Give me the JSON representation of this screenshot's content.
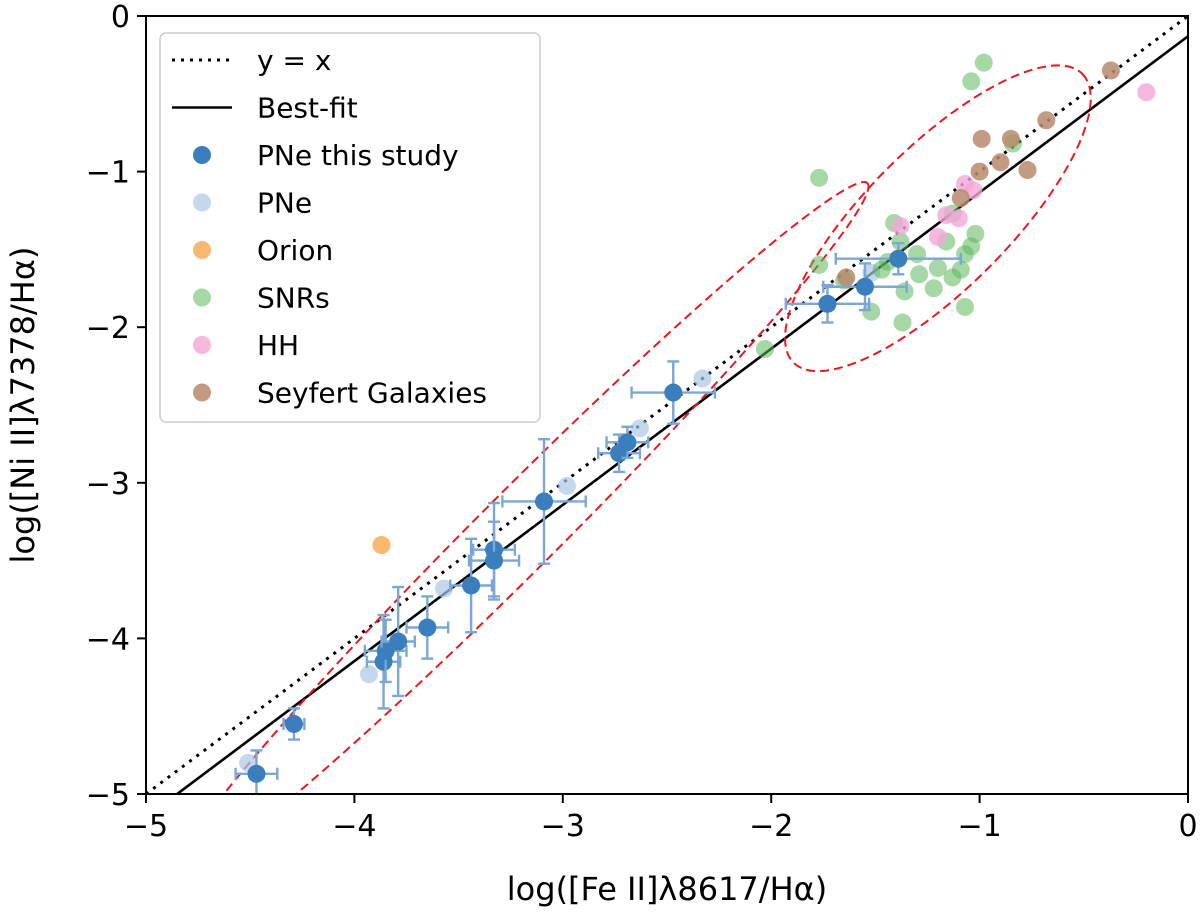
{
  "chart_data": {
    "type": "scatter",
    "title": "",
    "xlabel": "log([Fe II]λ8617/Hα)",
    "ylabel": "log([Ni II]λ7378/Hα)",
    "xlim": [
      -5,
      0
    ],
    "ylim": [
      -5,
      0
    ],
    "grid": false,
    "legend_position": "top-left",
    "x_ticks": [
      -5,
      -4,
      -3,
      -2,
      -1,
      0
    ],
    "y_ticks": [
      -5,
      -4,
      -3,
      -2,
      -1,
      0
    ],
    "x_tick_labels": [
      "−5",
      "−4",
      "−3",
      "−2",
      "−1",
      "0"
    ],
    "y_tick_labels": [
      "−5",
      "−4",
      "−3",
      "−2",
      "−1",
      "0"
    ],
    "lines": [
      {
        "name": "y = x",
        "style": "dotted",
        "color": "#000000",
        "x": [
          -5,
          0
        ],
        "y": [
          -5,
          0
        ]
      },
      {
        "name": "Best-fit",
        "style": "solid",
        "color": "#000000",
        "x": [
          -5,
          0
        ],
        "y": [
          -5.15,
          -0.13
        ]
      }
    ],
    "ellipses": [
      {
        "name": "pne-region",
        "color": "#e8191c",
        "cx": -3.2,
        "cy": -3.3,
        "semi_major": 2.35,
        "semi_minor": 0.19,
        "angle_deg": 45
      },
      {
        "name": "shock-region",
        "color": "#e8191c",
        "cx": -1.2,
        "cy": -1.3,
        "semi_major": 0.98,
        "semi_minor": 0.34,
        "angle_deg": 45
      }
    ],
    "series": [
      {
        "name": "PNe this study",
        "color": "#3a7ebd",
        "alpha": 1.0,
        "error_bars": true,
        "points": [
          {
            "x": -4.47,
            "y": -4.87,
            "xerr": 0.1,
            "yerr": 0.15
          },
          {
            "x": -4.29,
            "y": -4.55,
            "xerr": 0.05,
            "yerr": 0.1
          },
          {
            "x": -3.86,
            "y": -4.15,
            "xerr": 0.08,
            "yerr": 0.3
          },
          {
            "x": -3.85,
            "y": -4.08,
            "xerr": 0.1,
            "yerr": 0.2
          },
          {
            "x": -3.79,
            "y": -4.02,
            "xerr": 0.08,
            "yerr": 0.35
          },
          {
            "x": -3.65,
            "y": -3.93,
            "xerr": 0.1,
            "yerr": 0.2
          },
          {
            "x": -3.44,
            "y": -3.66,
            "xerr": 0.1,
            "yerr": 0.3
          },
          {
            "x": -3.33,
            "y": -3.43,
            "xerr": 0.1,
            "yerr": 0.3
          },
          {
            "x": -3.33,
            "y": -3.5,
            "xerr": 0.12,
            "yerr": 0.25
          },
          {
            "x": -3.09,
            "y": -3.12,
            "xerr": 0.2,
            "yerr": 0.4
          },
          {
            "x": -2.73,
            "y": -2.81,
            "xerr": 0.1,
            "yerr": 0.12
          },
          {
            "x": -2.69,
            "y": -2.74,
            "xerr": 0.1,
            "yerr": 0.1
          },
          {
            "x": -2.47,
            "y": -2.42,
            "xerr": 0.2,
            "yerr": 0.2
          },
          {
            "x": -1.73,
            "y": -1.85,
            "xerr": 0.2,
            "yerr": 0.12
          },
          {
            "x": -1.55,
            "y": -1.74,
            "xerr": 0.2,
            "yerr": 0.15
          },
          {
            "x": -1.39,
            "y": -1.56,
            "xerr": 0.3,
            "yerr": 0.1
          }
        ]
      },
      {
        "name": "PNe",
        "color": "#a9c8e6",
        "alpha": 0.7,
        "error_bars": false,
        "points": [
          {
            "x": -4.51,
            "y": -4.8
          },
          {
            "x": -3.93,
            "y": -4.23
          },
          {
            "x": -3.57,
            "y": -3.68
          },
          {
            "x": -2.98,
            "y": -3.02
          },
          {
            "x": -2.63,
            "y": -2.65
          },
          {
            "x": -2.33,
            "y": -2.33
          },
          {
            "x": -1.52,
            "y": -1.65
          }
        ]
      },
      {
        "name": "Orion",
        "color": "#f7a54b",
        "alpha": 0.8,
        "error_bars": false,
        "points": [
          {
            "x": -3.87,
            "y": -3.4
          }
        ]
      },
      {
        "name": "SNRs",
        "color": "#5cb85c",
        "alpha": 0.55,
        "error_bars": false,
        "points": [
          {
            "x": -2.03,
            "y": -2.14
          },
          {
            "x": -1.77,
            "y": -1.04
          },
          {
            "x": -1.77,
            "y": -1.6
          },
          {
            "x": -1.65,
            "y": -1.7
          },
          {
            "x": -1.52,
            "y": -1.9
          },
          {
            "x": -1.47,
            "y": -1.63
          },
          {
            "x": -1.44,
            "y": -1.58
          },
          {
            "x": -1.41,
            "y": -1.33
          },
          {
            "x": -1.38,
            "y": -1.45
          },
          {
            "x": -1.37,
            "y": -1.97
          },
          {
            "x": -1.36,
            "y": -1.77
          },
          {
            "x": -1.3,
            "y": -1.53
          },
          {
            "x": -1.29,
            "y": -1.66
          },
          {
            "x": -1.22,
            "y": -1.75
          },
          {
            "x": -1.2,
            "y": -1.62
          },
          {
            "x": -1.16,
            "y": -1.45
          },
          {
            "x": -1.13,
            "y": -1.68
          },
          {
            "x": -1.09,
            "y": -1.63
          },
          {
            "x": -1.07,
            "y": -1.87
          },
          {
            "x": -1.04,
            "y": -1.48
          },
          {
            "x": -1.02,
            "y": -1.4
          },
          {
            "x": -1.04,
            "y": -0.42
          },
          {
            "x": -0.98,
            "y": -0.3
          },
          {
            "x": -0.84,
            "y": -0.82
          },
          {
            "x": -1.13,
            "y": -1.27
          },
          {
            "x": -1.07,
            "y": -1.53
          }
        ]
      },
      {
        "name": "HH",
        "color": "#f4a6d7",
        "alpha": 0.8,
        "error_bars": false,
        "points": [
          {
            "x": -1.38,
            "y": -1.35
          },
          {
            "x": -1.2,
            "y": -1.42
          },
          {
            "x": -1.16,
            "y": -1.28
          },
          {
            "x": -1.1,
            "y": -1.3
          },
          {
            "x": -1.07,
            "y": -1.08
          },
          {
            "x": -1.03,
            "y": -1.12
          },
          {
            "x": -0.2,
            "y": -0.49
          }
        ]
      },
      {
        "name": "Seyfert Galaxies",
        "color": "#b98a6c",
        "alpha": 0.85,
        "error_bars": false,
        "points": [
          {
            "x": -1.64,
            "y": -1.68
          },
          {
            "x": -1.09,
            "y": -1.17
          },
          {
            "x": -1.0,
            "y": -1.0
          },
          {
            "x": -0.99,
            "y": -0.79
          },
          {
            "x": -0.9,
            "y": -0.94
          },
          {
            "x": -0.85,
            "y": -0.79
          },
          {
            "x": -0.77,
            "y": -0.99
          },
          {
            "x": -0.68,
            "y": -0.67
          },
          {
            "x": -0.37,
            "y": -0.35
          }
        ]
      }
    ],
    "legend": [
      {
        "label": "y = x",
        "kind": "dotted-line"
      },
      {
        "label": "Best-fit",
        "kind": "solid-line"
      },
      {
        "label": "PNe this study",
        "kind": "marker",
        "series": 0
      },
      {
        "label": "PNe",
        "kind": "marker",
        "series": 1
      },
      {
        "label": "Orion",
        "kind": "marker",
        "series": 2
      },
      {
        "label": "SNRs",
        "kind": "marker",
        "series": 3
      },
      {
        "label": "HH",
        "kind": "marker",
        "series": 4
      },
      {
        "label": "Seyfert Galaxies",
        "kind": "marker",
        "series": 5
      }
    ]
  }
}
